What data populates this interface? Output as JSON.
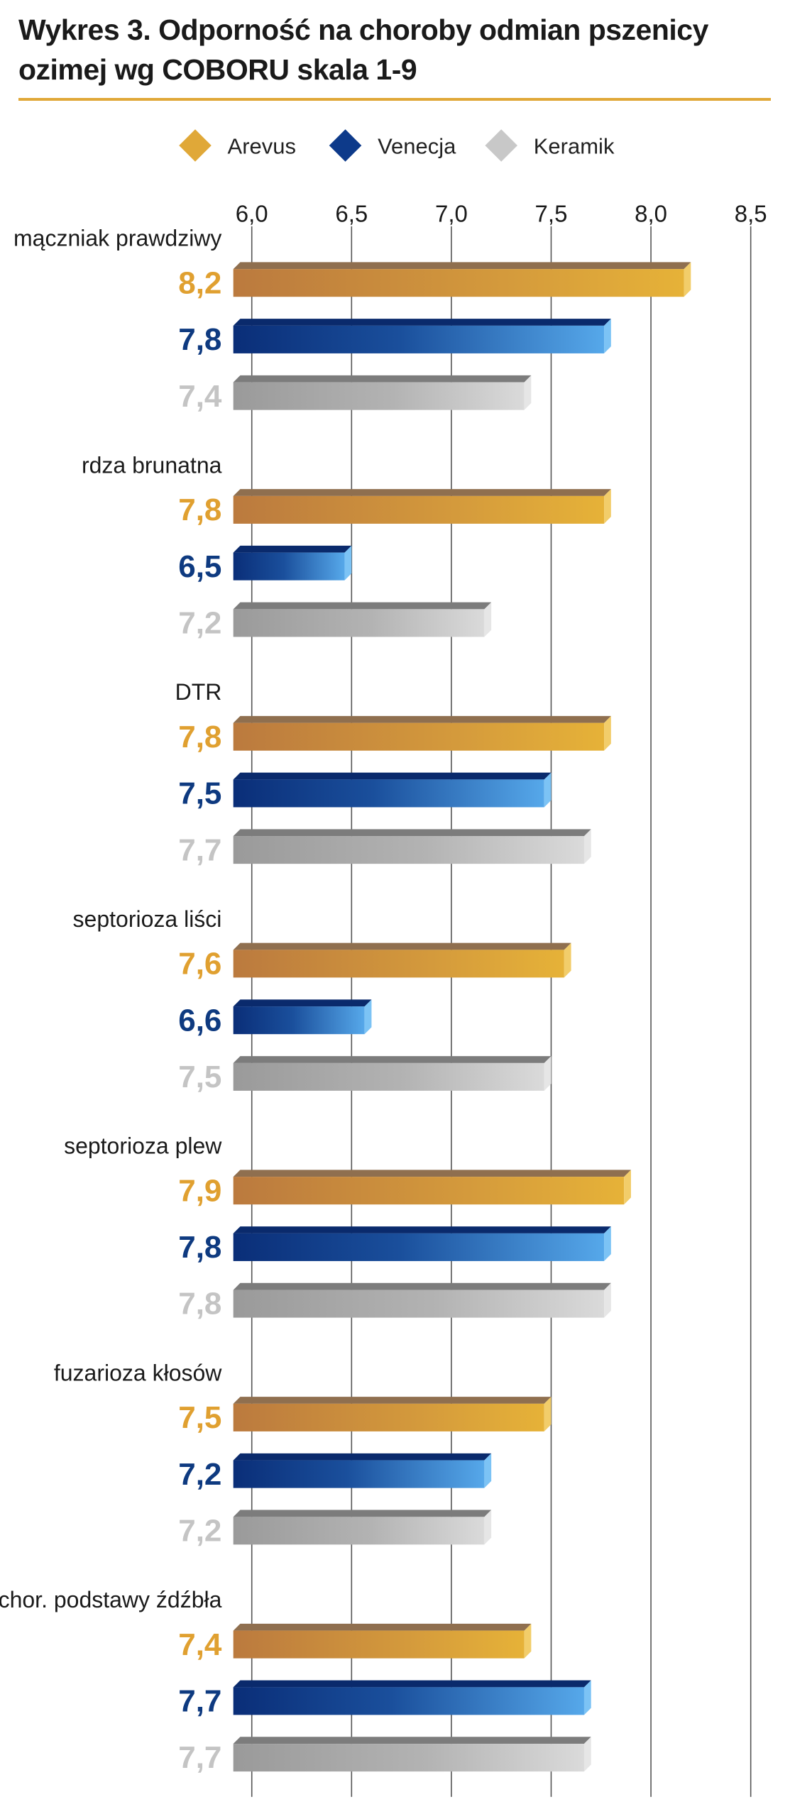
{
  "title_line1": "Wykres 3. Odporność na choroby odmian pszenicy",
  "title_line2": "ozimej wg COBORU skala 1-9",
  "chart_data": {
    "type": "bar",
    "orientation": "horizontal",
    "title": "Wykres 3. Odporność na choroby odmian pszenicy ozimej wg COBORU skala 1-9",
    "categories": [
      "mączniak prawdziwy",
      "rdza brunatna",
      "DTR",
      "septorioza liści",
      "septorioza plew",
      "fuzarioza kłosów",
      "chor. podstawy źdźbła"
    ],
    "series": [
      {
        "name": "Arevus",
        "values": [
          8.2,
          7.8,
          7.8,
          7.6,
          7.9,
          7.5,
          7.4
        ],
        "labels": [
          "8,2",
          "7,8",
          "7,8",
          "7,6",
          "7,9",
          "7,5",
          "7,4"
        ]
      },
      {
        "name": "Venecja",
        "values": [
          7.8,
          6.5,
          7.5,
          6.6,
          7.8,
          7.2,
          7.7
        ],
        "labels": [
          "7,8",
          "6,5",
          "7,5",
          "6,6",
          "7,8",
          "7,2",
          "7,7"
        ]
      },
      {
        "name": "Keramik",
        "values": [
          7.4,
          7.2,
          7.7,
          7.5,
          7.8,
          7.2,
          7.7
        ],
        "labels": [
          "7,4",
          "7,2",
          "7,7",
          "7,5",
          "7,8",
          "7,2",
          "7,7"
        ]
      }
    ],
    "xlim": [
      6.0,
      8.5
    ],
    "xticks": [
      6.0,
      6.5,
      7.0,
      7.5,
      8.0,
      8.5
    ],
    "xtick_labels": [
      "6,0",
      "6,5",
      "7,0",
      "7,5",
      "8,0",
      "8,5"
    ],
    "grid": true,
    "legend_position": "top",
    "colors": {
      "Arevus": "#e0a838",
      "Venecja": "#0d3a8a",
      "Keramik": "#c8c8c8",
      "accent_rule": "#e0a838",
      "label_Arevus": "#e0a030",
      "label_Venecja": "#0e3a80",
      "label_Keramik": "#c4c4c4"
    }
  }
}
